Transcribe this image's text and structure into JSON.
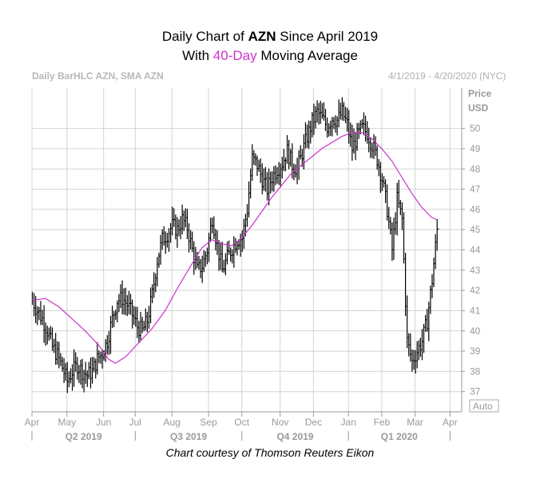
{
  "title_prefix": "Daily Chart of ",
  "ticker": "AZN",
  "title_suffix": " Since April 2019",
  "subtitle_prefix": "With ",
  "ma_label": "40-Day",
  "subtitle_suffix": " Moving Average",
  "header_left": "Daily BarHLC AZN, SMA AZN",
  "header_right": "4/1/2019 - 4/20/2020 (NYC)",
  "axis_title_line1": "Price",
  "axis_title_line2": "USD",
  "auto_label": "Auto",
  "credit": "Chart courtesy of Thomson Reuters Eikon",
  "colors": {
    "price": "#000000",
    "sma": "#cc33cc",
    "grid": "#d4d4d4",
    "axis": "#999999"
  },
  "chart_data": {
    "type": "line",
    "title": "Daily Chart of AZN Since April 2019",
    "subtitle": "With 40-Day Moving Average",
    "ylabel": "Price USD",
    "ylim": [
      36,
      52
    ],
    "y_ticks": [
      37,
      38,
      39,
      40,
      41,
      42,
      43,
      44,
      45,
      46,
      47,
      48,
      49,
      50
    ],
    "x_month_labels": [
      "Apr",
      "May",
      "Jun",
      "Jul",
      "Aug",
      "Sep",
      "Oct",
      "Nov",
      "Dec",
      "Jan",
      "Feb",
      "Mar",
      "Apr"
    ],
    "x_quarter_labels": [
      "Q2 2019",
      "Q3 2019",
      "Q4 2019",
      "Q1 2020"
    ],
    "grid": true,
    "series": [
      {
        "name": "Daily BarHLC AZN",
        "style": "hlc-bars",
        "points": [
          [
            0,
            41.5
          ],
          [
            3,
            41.0
          ],
          [
            6,
            40.6
          ],
          [
            9,
            40.0
          ],
          [
            12,
            39.2
          ],
          [
            15,
            38.8
          ],
          [
            18,
            38.2
          ],
          [
            21,
            37.5
          ],
          [
            24,
            38.0
          ],
          [
            27,
            38.3
          ],
          [
            30,
            38.0
          ],
          [
            33,
            37.8
          ],
          [
            36,
            38.0
          ],
          [
            39,
            38.6
          ],
          [
            42,
            38.9
          ],
          [
            45,
            39.5
          ],
          [
            48,
            40.6
          ],
          [
            51,
            41.5
          ],
          [
            54,
            41.6
          ],
          [
            57,
            41.3
          ],
          [
            60,
            40.8
          ],
          [
            63,
            40.2
          ],
          [
            66,
            40.0
          ],
          [
            69,
            40.5
          ],
          [
            72,
            41.8
          ],
          [
            75,
            43.5
          ],
          [
            78,
            44.5
          ],
          [
            81,
            44.8
          ],
          [
            84,
            45.2
          ],
          [
            87,
            45.0
          ],
          [
            90,
            45.5
          ],
          [
            93,
            45.1
          ],
          [
            96,
            44.0
          ],
          [
            99,
            43.0
          ],
          [
            102,
            43.2
          ],
          [
            105,
            44.0
          ],
          [
            108,
            45.6
          ],
          [
            111,
            44.2
          ],
          [
            114,
            43.0
          ],
          [
            117,
            43.6
          ],
          [
            120,
            44.1
          ],
          [
            123,
            44.5
          ],
          [
            126,
            44.6
          ],
          [
            129,
            46.0
          ],
          [
            132,
            48.5
          ],
          [
            135,
            48.2
          ],
          [
            138,
            47.5
          ],
          [
            141,
            47.0
          ],
          [
            144,
            47.6
          ],
          [
            147,
            48.0
          ],
          [
            150,
            48.3
          ],
          [
            153,
            48.9
          ],
          [
            156,
            48.2
          ],
          [
            159,
            48.0
          ],
          [
            162,
            48.8
          ],
          [
            165,
            49.6
          ],
          [
            168,
            50.3
          ],
          [
            171,
            50.8
          ],
          [
            174,
            50.5
          ],
          [
            177,
            50.1
          ],
          [
            180,
            50.5
          ],
          [
            183,
            50.4
          ],
          [
            186,
            50.8
          ],
          [
            189,
            50.2
          ],
          [
            192,
            49.0
          ],
          [
            195,
            49.6
          ],
          [
            198,
            50.0
          ],
          [
            201,
            49.8
          ],
          [
            204,
            49.2
          ],
          [
            207,
            48.5
          ],
          [
            210,
            47.5
          ],
          [
            213,
            46.0
          ],
          [
            216,
            44.0
          ],
          [
            219,
            46.5
          ],
          [
            222,
            45.5
          ],
          [
            225,
            39.5
          ],
          [
            228,
            38.5
          ],
          [
            231,
            39.0
          ],
          [
            234,
            39.5
          ],
          [
            237,
            40.5
          ],
          [
            240,
            42.5
          ],
          [
            243,
            45.0
          ]
        ]
      },
      {
        "name": "SMA AZN",
        "style": "line",
        "points": [
          [
            0,
            41.5
          ],
          [
            8,
            41.6
          ],
          [
            16,
            41.2
          ],
          [
            24,
            40.6
          ],
          [
            32,
            40.0
          ],
          [
            40,
            39.3
          ],
          [
            46,
            38.6
          ],
          [
            50,
            38.4
          ],
          [
            56,
            38.7
          ],
          [
            64,
            39.4
          ],
          [
            72,
            40.1
          ],
          [
            80,
            41.0
          ],
          [
            88,
            42.2
          ],
          [
            96,
            43.3
          ],
          [
            102,
            44.1
          ],
          [
            108,
            44.5
          ],
          [
            114,
            44.3
          ],
          [
            120,
            44.2
          ],
          [
            126,
            44.6
          ],
          [
            132,
            45.2
          ],
          [
            138,
            45.9
          ],
          [
            144,
            46.6
          ],
          [
            150,
            47.2
          ],
          [
            156,
            47.8
          ],
          [
            162,
            48.2
          ],
          [
            168,
            48.6
          ],
          [
            174,
            49.0
          ],
          [
            180,
            49.3
          ],
          [
            186,
            49.6
          ],
          [
            192,
            49.8
          ],
          [
            198,
            49.8
          ],
          [
            204,
            49.5
          ],
          [
            210,
            49.0
          ],
          [
            216,
            48.4
          ],
          [
            222,
            47.6
          ],
          [
            228,
            46.8
          ],
          [
            234,
            46.1
          ],
          [
            240,
            45.6
          ],
          [
            243,
            45.5
          ]
        ]
      }
    ]
  }
}
